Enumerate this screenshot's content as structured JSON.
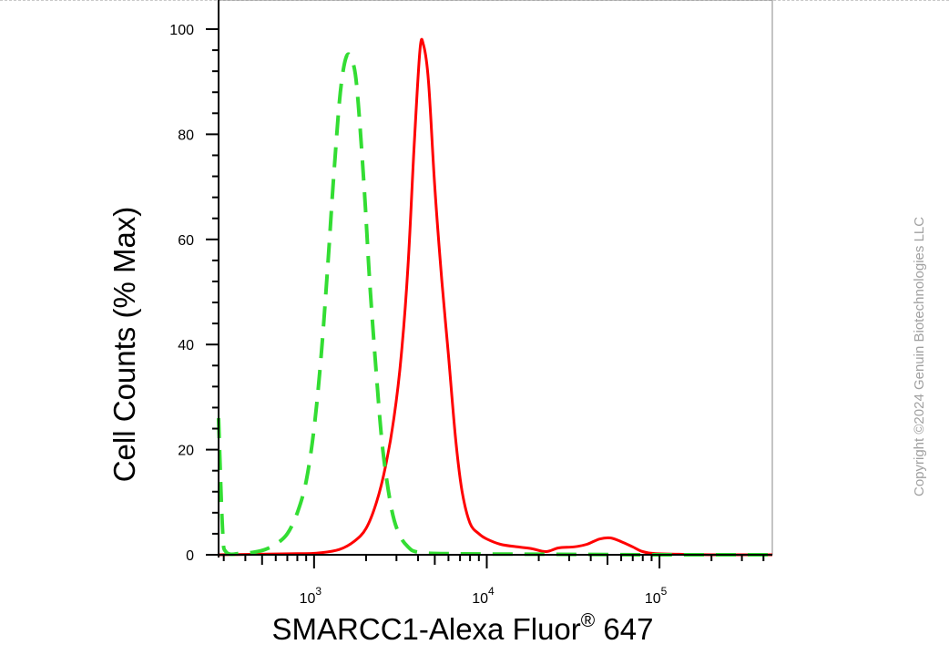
{
  "chart_data": {
    "type": "line",
    "title": "",
    "xlabel": "SMARCC1-Alexa Fluor",
    "xlabel_superscript": "®",
    "xlabel_suffix": " 647",
    "ylabel": "Cell Counts (% Max)",
    "x_scale": "log",
    "xlim": [
      280,
      450000
    ],
    "ylim": [
      0,
      100
    ],
    "y_ticks": [
      0,
      20,
      40,
      60,
      80,
      100
    ],
    "x_ticks": [
      {
        "base": "10",
        "exp": "3",
        "value": 1000
      },
      {
        "base": "10",
        "exp": "4",
        "value": 10000
      },
      {
        "base": "10",
        "exp": "5",
        "value": 100000
      }
    ],
    "grid": false,
    "series": [
      {
        "color": "#ff0000",
        "style": "solid",
        "points": [
          [
            280,
            0
          ],
          [
            800,
            0.2
          ],
          [
            1100,
            0.4
          ],
          [
            1400,
            1.0
          ],
          [
            1700,
            2.5
          ],
          [
            2000,
            5
          ],
          [
            2300,
            10
          ],
          [
            2600,
            17
          ],
          [
            2900,
            26
          ],
          [
            3200,
            38
          ],
          [
            3500,
            55
          ],
          [
            3800,
            78
          ],
          [
            4100,
            96
          ],
          [
            4300,
            97
          ],
          [
            4600,
            90
          ],
          [
            5000,
            70
          ],
          [
            5500,
            52
          ],
          [
            6000,
            38
          ],
          [
            6600,
            22
          ],
          [
            7200,
            12
          ],
          [
            8000,
            6
          ],
          [
            9000,
            4
          ],
          [
            10000,
            3
          ],
          [
            12000,
            2
          ],
          [
            15000,
            1.5
          ],
          [
            18000,
            1.2
          ],
          [
            22000,
            0.6
          ],
          [
            26000,
            1.3
          ],
          [
            32000,
            1.5
          ],
          [
            38000,
            2
          ],
          [
            45000,
            3
          ],
          [
            52000,
            3.2
          ],
          [
            60000,
            2.5
          ],
          [
            70000,
            1.5
          ],
          [
            80000,
            0.6
          ],
          [
            95000,
            0.2
          ],
          [
            130000,
            0.1
          ],
          [
            200000,
            0
          ],
          [
            450000,
            0
          ]
        ]
      },
      {
        "color": "#33dd33",
        "style": "dashed",
        "points": [
          [
            280,
            26
          ],
          [
            295,
            5
          ],
          [
            310,
            0.5
          ],
          [
            380,
            0.3
          ],
          [
            450,
            0.5
          ],
          [
            520,
            1
          ],
          [
            600,
            2
          ],
          [
            700,
            4
          ],
          [
            800,
            8
          ],
          [
            900,
            14
          ],
          [
            1000,
            24
          ],
          [
            1100,
            38
          ],
          [
            1200,
            55
          ],
          [
            1300,
            72
          ],
          [
            1420,
            88
          ],
          [
            1550,
            95
          ],
          [
            1700,
            93
          ],
          [
            1800,
            86
          ],
          [
            1950,
            70
          ],
          [
            2100,
            52
          ],
          [
            2300,
            34
          ],
          [
            2500,
            20
          ],
          [
            2800,
            9
          ],
          [
            3100,
            4
          ],
          [
            3500,
            1.5
          ],
          [
            4000,
            0.5
          ],
          [
            6000,
            0.2
          ],
          [
            20000,
            0.1
          ],
          [
            100000,
            0
          ],
          [
            450000,
            0
          ]
        ]
      }
    ]
  },
  "watermark": "Copyright ©2024 Genuin Biotechnologies LLC"
}
